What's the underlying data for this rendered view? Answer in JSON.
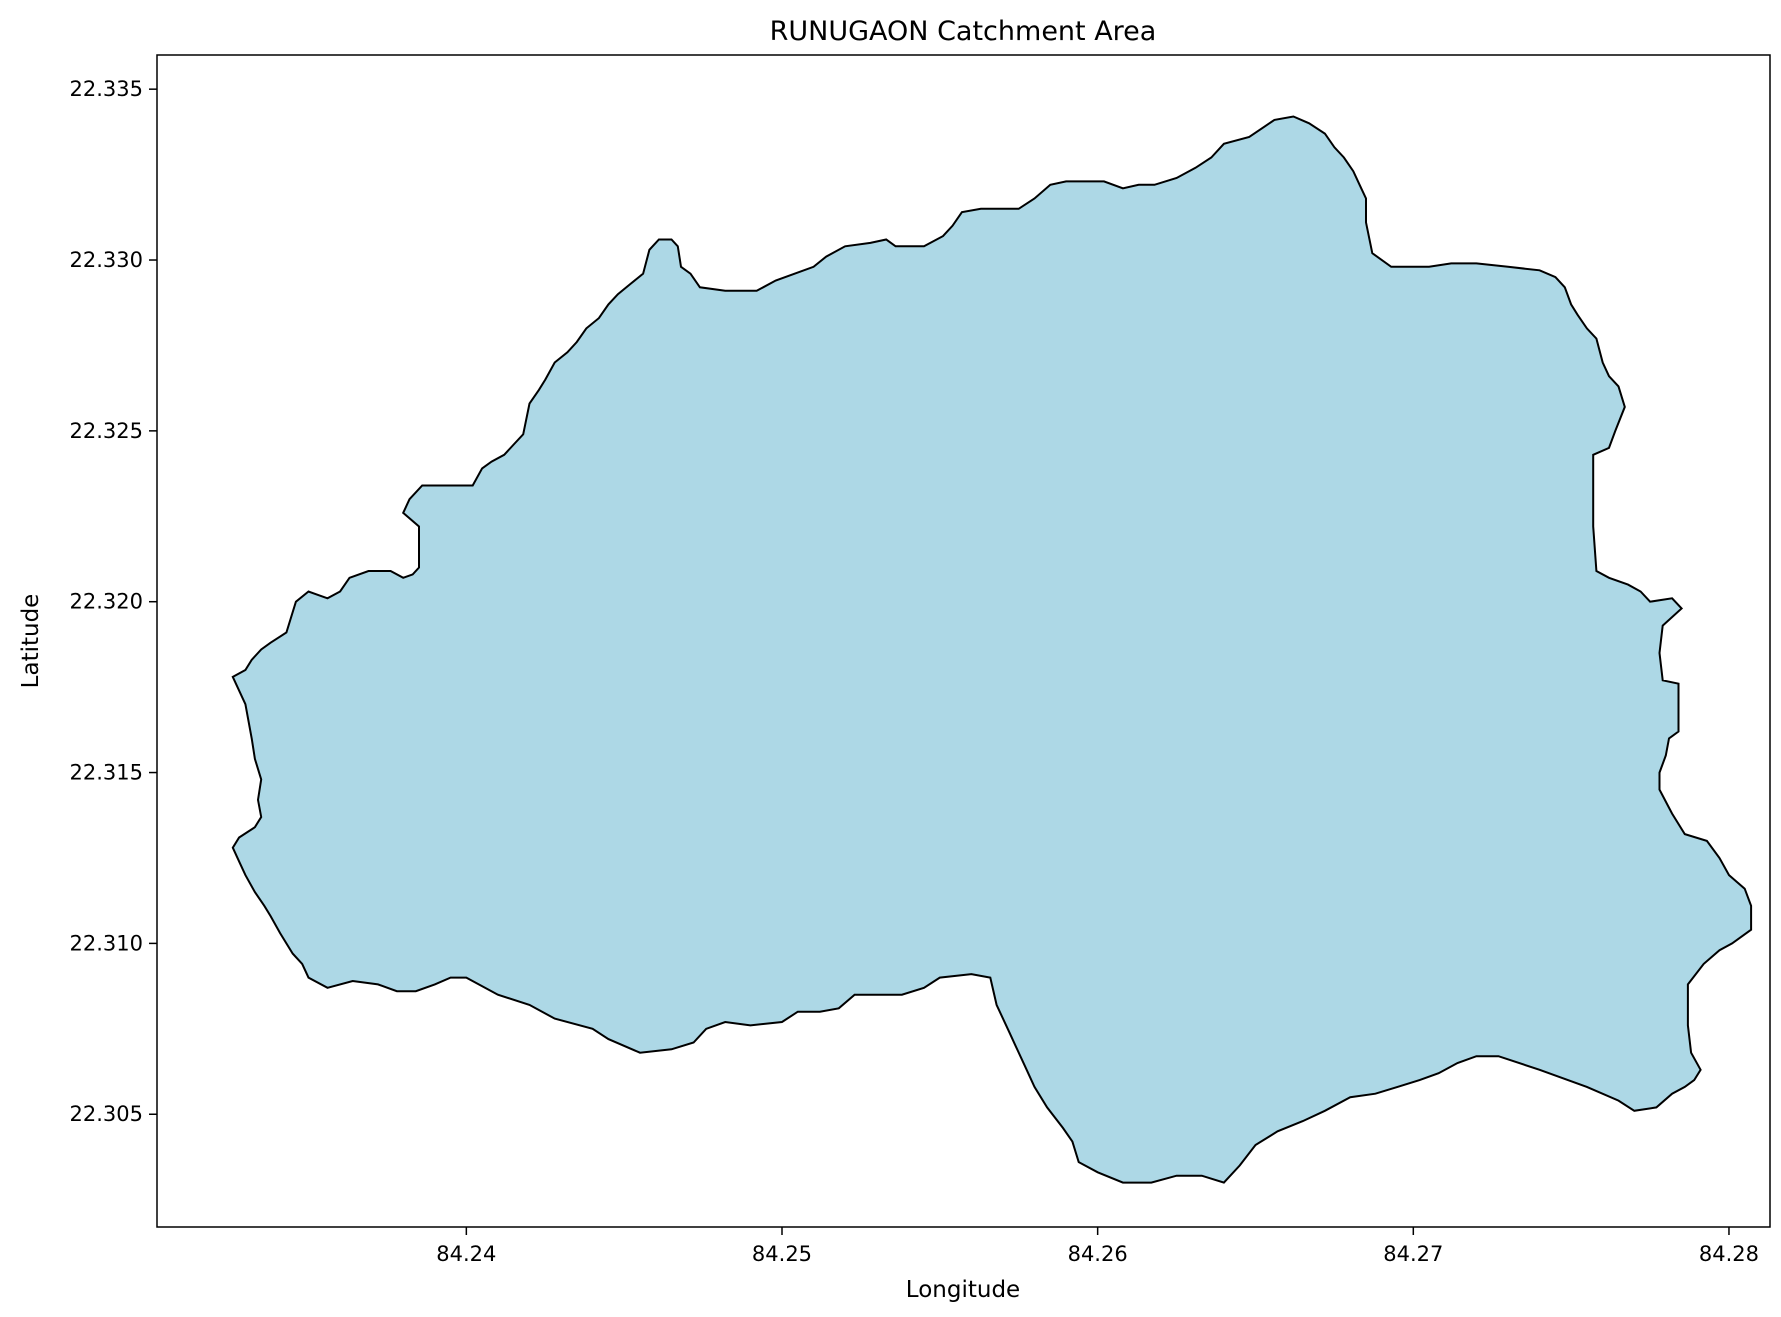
{
  "chart_data": {
    "type": "map",
    "title": "RUNUGAON Catchment Area",
    "xlabel": "Longitude",
    "ylabel": "Latitude",
    "xlim": [
      84.2302,
      84.2813
    ],
    "ylim": [
      22.3017,
      22.336
    ],
    "xticks": [
      {
        "value": 84.24,
        "label": "84.24"
      },
      {
        "value": 84.25,
        "label": "84.25"
      },
      {
        "value": 84.26,
        "label": "84.26"
      },
      {
        "value": 84.27,
        "label": "84.27"
      },
      {
        "value": 84.28,
        "label": "84.28"
      }
    ],
    "yticks": [
      {
        "value": 22.305,
        "label": "22.305"
      },
      {
        "value": 22.31,
        "label": "22.310"
      },
      {
        "value": 22.315,
        "label": "22.315"
      },
      {
        "value": 22.32,
        "label": "22.320"
      },
      {
        "value": 22.325,
        "label": "22.325"
      },
      {
        "value": 22.33,
        "label": "22.330"
      },
      {
        "value": 22.335,
        "label": "22.335"
      }
    ],
    "grid": false,
    "series": [
      {
        "kind": "polygon",
        "fill": "#add8e6",
        "stroke": "#000000",
        "boundary": [
          [
            84.2326,
            22.3178
          ],
          [
            84.233,
            22.318
          ],
          [
            84.2332,
            22.3183
          ],
          [
            84.2335,
            22.3186
          ],
          [
            84.2338,
            22.3188
          ],
          [
            84.2343,
            22.3191
          ],
          [
            84.2346,
            22.32
          ],
          [
            84.235,
            22.3203
          ],
          [
            84.2353,
            22.3202
          ],
          [
            84.2356,
            22.3201
          ],
          [
            84.236,
            22.3203
          ],
          [
            84.2363,
            22.3207
          ],
          [
            84.2369,
            22.3209
          ],
          [
            84.2376,
            22.3209
          ],
          [
            84.238,
            22.3207
          ],
          [
            84.2383,
            22.3208
          ],
          [
            84.2385,
            22.321
          ],
          [
            84.2385,
            22.3217
          ],
          [
            84.2385,
            22.3222
          ],
          [
            84.238,
            22.3226
          ],
          [
            84.2382,
            22.323
          ],
          [
            84.2386,
            22.3234
          ],
          [
            84.2392,
            22.3234
          ],
          [
            84.2402,
            22.3234
          ],
          [
            84.2405,
            22.3239
          ],
          [
            84.2408,
            22.3241
          ],
          [
            84.2412,
            22.3243
          ],
          [
            84.2415,
            22.3246
          ],
          [
            84.2418,
            22.3249
          ],
          [
            84.242,
            22.3258
          ],
          [
            84.2423,
            22.3262
          ],
          [
            84.2425,
            22.3265
          ],
          [
            84.2428,
            22.327
          ],
          [
            84.2432,
            22.3273
          ],
          [
            84.2435,
            22.3276
          ],
          [
            84.2438,
            22.328
          ],
          [
            84.2442,
            22.3283
          ],
          [
            84.2445,
            22.3287
          ],
          [
            84.2448,
            22.329
          ],
          [
            84.2452,
            22.3293
          ],
          [
            84.2456,
            22.3296
          ],
          [
            84.2458,
            22.3303
          ],
          [
            84.2461,
            22.3306
          ],
          [
            84.2465,
            22.3306
          ],
          [
            84.2467,
            22.3304
          ],
          [
            84.2468,
            22.3298
          ],
          [
            84.2471,
            22.3296
          ],
          [
            84.2474,
            22.3292
          ],
          [
            84.2482,
            22.3291
          ],
          [
            84.2492,
            22.3291
          ],
          [
            84.2498,
            22.3294
          ],
          [
            84.2504,
            22.3296
          ],
          [
            84.251,
            22.3298
          ],
          [
            84.2514,
            22.3301
          ],
          [
            84.252,
            22.3304
          ],
          [
            84.2528,
            22.3305
          ],
          [
            84.2533,
            22.3306
          ],
          [
            84.2536,
            22.3304
          ],
          [
            84.2545,
            22.3304
          ],
          [
            84.2551,
            22.3307
          ],
          [
            84.2554,
            22.331
          ],
          [
            84.2557,
            22.3314
          ],
          [
            84.2563,
            22.3315
          ],
          [
            84.2575,
            22.3315
          ],
          [
            84.258,
            22.3318
          ],
          [
            84.2585,
            22.3322
          ],
          [
            84.259,
            22.3323
          ],
          [
            84.2602,
            22.3323
          ],
          [
            84.2608,
            22.3321
          ],
          [
            84.2613,
            22.3322
          ],
          [
            84.2618,
            22.3322
          ],
          [
            84.2625,
            22.3324
          ],
          [
            84.2631,
            22.3327
          ],
          [
            84.2636,
            22.333
          ],
          [
            84.264,
            22.3334
          ],
          [
            84.2648,
            22.3336
          ],
          [
            84.2656,
            22.3341
          ],
          [
            84.2662,
            22.3342
          ],
          [
            84.2667,
            22.334
          ],
          [
            84.2672,
            22.3337
          ],
          [
            84.2675,
            22.3333
          ],
          [
            84.2678,
            22.333
          ],
          [
            84.2681,
            22.3326
          ],
          [
            84.2683,
            22.3322
          ],
          [
            84.2685,
            22.3318
          ],
          [
            84.2685,
            22.3311
          ],
          [
            84.2687,
            22.3302
          ],
          [
            84.2693,
            22.3298
          ],
          [
            84.2705,
            22.3298
          ],
          [
            84.2712,
            22.3299
          ],
          [
            84.272,
            22.3299
          ],
          [
            84.273,
            22.3298
          ],
          [
            84.274,
            22.3297
          ],
          [
            84.2745,
            22.3295
          ],
          [
            84.2748,
            22.3292
          ],
          [
            84.275,
            22.3287
          ],
          [
            84.2752,
            22.3284
          ],
          [
            84.2755,
            22.328
          ],
          [
            84.2758,
            22.3277
          ],
          [
            84.276,
            22.327
          ],
          [
            84.2762,
            22.3266
          ],
          [
            84.2765,
            22.3263
          ],
          [
            84.2767,
            22.3257
          ],
          [
            84.2764,
            22.325
          ],
          [
            84.2762,
            22.3245
          ],
          [
            84.2757,
            22.3243
          ],
          [
            84.2757,
            22.3232
          ],
          [
            84.2757,
            22.3222
          ],
          [
            84.2758,
            22.3209
          ],
          [
            84.2762,
            22.3207
          ],
          [
            84.2768,
            22.3205
          ],
          [
            84.2772,
            22.3203
          ],
          [
            84.2775,
            22.32
          ],
          [
            84.2782,
            22.3201
          ],
          [
            84.2785,
            22.3198
          ],
          [
            84.2779,
            22.3193
          ],
          [
            84.2778,
            22.3185
          ],
          [
            84.2779,
            22.3177
          ],
          [
            84.2784,
            22.3176
          ],
          [
            84.2784,
            22.3167
          ],
          [
            84.2784,
            22.3162
          ],
          [
            84.2781,
            22.316
          ],
          [
            84.278,
            22.3155
          ],
          [
            84.2778,
            22.315
          ],
          [
            84.2778,
            22.3145
          ],
          [
            84.2782,
            22.3138
          ],
          [
            84.2786,
            22.3132
          ],
          [
            84.2793,
            22.313
          ],
          [
            84.2797,
            22.3125
          ],
          [
            84.28,
            22.312
          ],
          [
            84.2805,
            22.3116
          ],
          [
            84.2807,
            22.3111
          ],
          [
            84.2807,
            22.3104
          ],
          [
            84.2801,
            22.31
          ],
          [
            84.2797,
            22.3098
          ],
          [
            84.2792,
            22.3094
          ],
          [
            84.2787,
            22.3088
          ],
          [
            84.2787,
            22.3076
          ],
          [
            84.2788,
            22.3068
          ],
          [
            84.2791,
            22.3063
          ],
          [
            84.2789,
            22.306
          ],
          [
            84.2786,
            22.3058
          ],
          [
            84.2782,
            22.3056
          ],
          [
            84.2777,
            22.3052
          ],
          [
            84.277,
            22.3051
          ],
          [
            84.2765,
            22.3054
          ],
          [
            84.2755,
            22.3058
          ],
          [
            84.274,
            22.3063
          ],
          [
            84.2727,
            22.3067
          ],
          [
            84.272,
            22.3067
          ],
          [
            84.2714,
            22.3065
          ],
          [
            84.2708,
            22.3062
          ],
          [
            84.2702,
            22.306
          ],
          [
            84.2695,
            22.3058
          ],
          [
            84.2688,
            22.3056
          ],
          [
            84.268,
            22.3055
          ],
          [
            84.2672,
            22.3051
          ],
          [
            84.2665,
            22.3048
          ],
          [
            84.2657,
            22.3045
          ],
          [
            84.265,
            22.3041
          ],
          [
            84.2645,
            22.3035
          ],
          [
            84.264,
            22.303
          ],
          [
            84.2633,
            22.3032
          ],
          [
            84.2625,
            22.3032
          ],
          [
            84.2617,
            22.303
          ],
          [
            84.2608,
            22.303
          ],
          [
            84.26,
            22.3033
          ],
          [
            84.2594,
            22.3036
          ],
          [
            84.2592,
            22.3042
          ],
          [
            84.2589,
            22.3046
          ],
          [
            84.2584,
            22.3052
          ],
          [
            84.258,
            22.3058
          ],
          [
            84.2577,
            22.3064
          ],
          [
            84.2574,
            22.307
          ],
          [
            84.2572,
            22.3074
          ],
          [
            84.2568,
            22.3082
          ],
          [
            84.2566,
            22.309
          ],
          [
            84.256,
            22.3091
          ],
          [
            84.255,
            22.309
          ],
          [
            84.2545,
            22.3087
          ],
          [
            84.2538,
            22.3085
          ],
          [
            84.253,
            22.3085
          ],
          [
            84.2523,
            22.3085
          ],
          [
            84.2518,
            22.3081
          ],
          [
            84.2512,
            22.308
          ],
          [
            84.2505,
            22.308
          ],
          [
            84.25,
            22.3077
          ],
          [
            84.249,
            22.3076
          ],
          [
            84.2482,
            22.3077
          ],
          [
            84.2476,
            22.3075
          ],
          [
            84.2472,
            22.3071
          ],
          [
            84.2465,
            22.3069
          ],
          [
            84.2455,
            22.3068
          ],
          [
            84.2445,
            22.3072
          ],
          [
            84.244,
            22.3075
          ],
          [
            84.2428,
            22.3078
          ],
          [
            84.242,
            22.3082
          ],
          [
            84.241,
            22.3085
          ],
          [
            84.24,
            22.309
          ],
          [
            84.2395,
            22.309
          ],
          [
            84.239,
            22.3088
          ],
          [
            84.2384,
            22.3086
          ],
          [
            84.2378,
            22.3086
          ],
          [
            84.2372,
            22.3088
          ],
          [
            84.2364,
            22.3089
          ],
          [
            84.2356,
            22.3087
          ],
          [
            84.235,
            22.309
          ],
          [
            84.2348,
            22.3094
          ],
          [
            84.2345,
            22.3097
          ],
          [
            84.2341,
            22.3103
          ],
          [
            84.2338,
            22.3108
          ],
          [
            84.2336,
            22.3111
          ],
          [
            84.2333,
            22.3115
          ],
          [
            84.233,
            22.312
          ],
          [
            84.2328,
            22.3124
          ],
          [
            84.2326,
            22.3128
          ],
          [
            84.2328,
            22.3131
          ],
          [
            84.2333,
            22.3134
          ],
          [
            84.2335,
            22.3137
          ],
          [
            84.2334,
            22.3142
          ],
          [
            84.2335,
            22.3148
          ],
          [
            84.2333,
            22.3154
          ],
          [
            84.2332,
            22.316
          ],
          [
            84.233,
            22.317
          ]
        ]
      }
    ]
  }
}
